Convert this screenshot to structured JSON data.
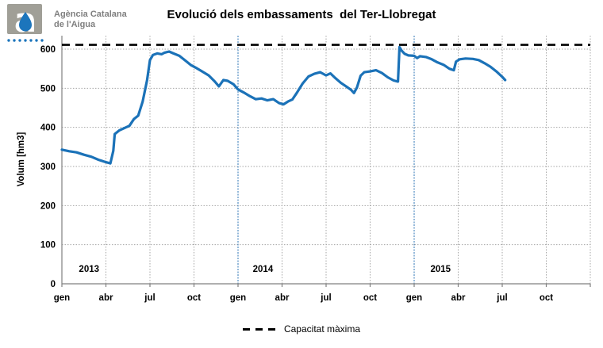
{
  "logo": {
    "org_line1": "Agència Catalana",
    "org_line2": "de l'Aigua",
    "letter": "a",
    "square_color": "#a09f97",
    "drop_color": "#1c75bc",
    "dots_color": "#1c75bc",
    "text_color": "#7f7f7f"
  },
  "title": "Evolució dels embassaments  del Ter-Llobregat",
  "legend": {
    "capacity_label": "Capacitat màxima"
  },
  "colors": {
    "line": "#1b72b8",
    "grid": "#a6a6a6",
    "axis": "#808080",
    "year_line": "#2e75b6",
    "capacity": "#000000"
  },
  "chart_data": {
    "type": "line",
    "title": "Evolució dels embassaments del Ter-Llobregat",
    "ylabel": "Volum [hm3]",
    "ylim": [
      0,
      600
    ],
    "yticks": [
      0,
      100,
      200,
      300,
      400,
      500,
      600
    ],
    "grid": "dotted",
    "x_axis": {
      "unit": "months from gen 2013",
      "range": [
        0,
        36
      ],
      "tick_positions": [
        0,
        3,
        6,
        9,
        12,
        15,
        18,
        21,
        24,
        27,
        30,
        33,
        36
      ],
      "tick_labels": [
        "gen",
        "abr",
        "jul",
        "oct",
        "gen",
        "abr",
        "jul",
        "oct",
        "gen",
        "abr",
        "jul",
        "oct",
        ""
      ]
    },
    "year_boundaries_months": [
      12,
      24
    ],
    "year_labels": [
      {
        "text": "2013",
        "center_month": 1.85
      },
      {
        "text": "2014",
        "center_month": 13.7
      },
      {
        "text": "2015",
        "center_month": 25.8
      }
    ],
    "capacity_line": {
      "label": "Capacitat màxima",
      "value_hm3": 611,
      "style": "dashed",
      "color": "#000000"
    },
    "series": [
      {
        "name": "volum-embassat",
        "color": "#1b72b8",
        "points_month_hm3": [
          [
            0,
            343
          ],
          [
            0.5,
            339
          ],
          [
            1,
            336
          ],
          [
            1.5,
            330
          ],
          [
            2,
            325
          ],
          [
            2.5,
            317
          ],
          [
            3,
            311
          ],
          [
            3.3,
            308
          ],
          [
            3.5,
            340
          ],
          [
            3.6,
            383
          ],
          [
            3.9,
            392
          ],
          [
            4.3,
            399
          ],
          [
            4.6,
            404
          ],
          [
            4.9,
            421
          ],
          [
            5.2,
            430
          ],
          [
            5.5,
            466
          ],
          [
            5.8,
            520
          ],
          [
            6.0,
            572
          ],
          [
            6.2,
            585
          ],
          [
            6.5,
            589
          ],
          [
            6.8,
            587
          ],
          [
            7.0,
            591
          ],
          [
            7.3,
            594
          ],
          [
            7.6,
            589
          ],
          [
            8.0,
            583
          ],
          [
            8.4,
            571
          ],
          [
            8.8,
            559
          ],
          [
            9.2,
            551
          ],
          [
            9.6,
            542
          ],
          [
            10.0,
            533
          ],
          [
            10.4,
            518
          ],
          [
            10.7,
            505
          ],
          [
            11.0,
            521
          ],
          [
            11.3,
            519
          ],
          [
            11.7,
            510
          ],
          [
            12.0,
            497
          ],
          [
            12.4,
            489
          ],
          [
            12.8,
            480
          ],
          [
            13.2,
            472
          ],
          [
            13.6,
            474
          ],
          [
            14.0,
            469
          ],
          [
            14.4,
            472
          ],
          [
            14.8,
            462
          ],
          [
            15.1,
            459
          ],
          [
            15.4,
            466
          ],
          [
            15.7,
            471
          ],
          [
            16.0,
            488
          ],
          [
            16.4,
            512
          ],
          [
            16.8,
            530
          ],
          [
            17.2,
            537
          ],
          [
            17.6,
            541
          ],
          [
            18.0,
            533
          ],
          [
            18.3,
            538
          ],
          [
            18.6,
            527
          ],
          [
            19.0,
            514
          ],
          [
            19.4,
            504
          ],
          [
            19.7,
            496
          ],
          [
            19.9,
            488
          ],
          [
            20.1,
            502
          ],
          [
            20.35,
            532
          ],
          [
            20.6,
            541
          ],
          [
            21.0,
            543
          ],
          [
            21.4,
            546
          ],
          [
            21.8,
            539
          ],
          [
            22.2,
            528
          ],
          [
            22.6,
            520
          ],
          [
            22.9,
            517
          ],
          [
            23.0,
            605
          ],
          [
            23.15,
            596
          ],
          [
            23.35,
            588
          ],
          [
            23.6,
            584
          ],
          [
            24.0,
            583
          ],
          [
            24.2,
            577
          ],
          [
            24.4,
            582
          ],
          [
            24.8,
            580
          ],
          [
            25.2,
            574
          ],
          [
            25.6,
            566
          ],
          [
            26.0,
            560
          ],
          [
            26.4,
            550
          ],
          [
            26.7,
            546
          ],
          [
            26.85,
            568
          ],
          [
            27.1,
            574
          ],
          [
            27.5,
            576
          ],
          [
            28.0,
            575
          ],
          [
            28.4,
            572
          ],
          [
            28.8,
            564
          ],
          [
            29.2,
            555
          ],
          [
            29.6,
            543
          ],
          [
            30.0,
            529
          ],
          [
            30.2,
            521
          ]
        ]
      }
    ]
  }
}
